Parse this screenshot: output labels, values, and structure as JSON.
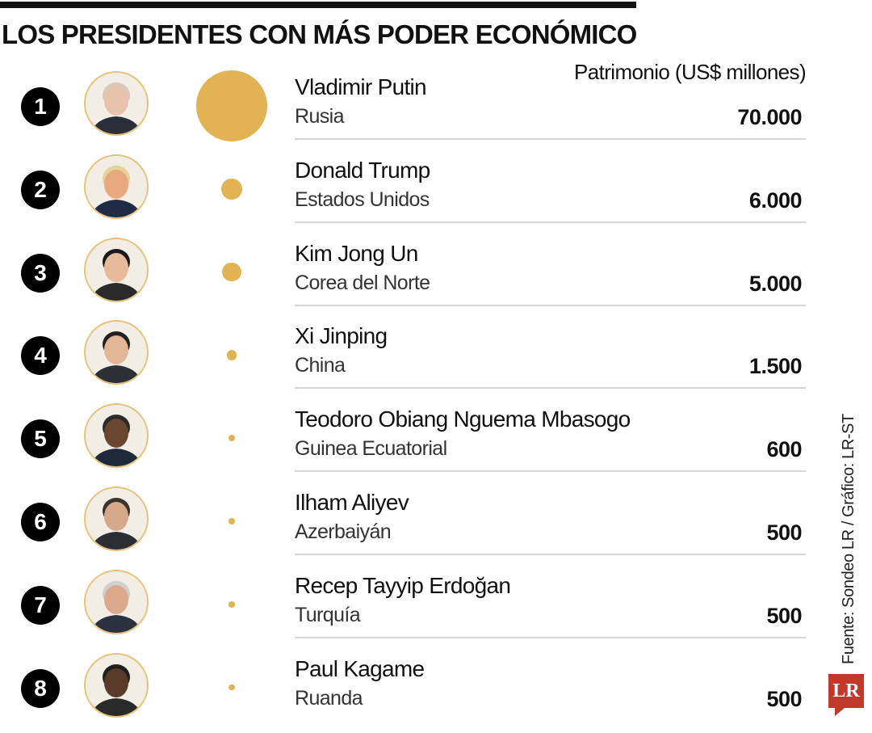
{
  "header": {
    "title": "LOS PRESIDENTES CON MÁS PODER ECONÓMICO",
    "column_label": "Patrimonio (US$ millones)"
  },
  "footer": {
    "source": "Fuente: Sondeo LR / Gráfico: LR-ST",
    "logo_text": "LR"
  },
  "colors": {
    "bubble": "#e2b354",
    "rank_badge": "#000000",
    "brand_red": "#c0392b"
  },
  "chart_data": {
    "type": "table",
    "title": "LOS PRESIDENTES CON MÁS PODER ECONÓMICO",
    "value_label": "Patrimonio (US$ millones)",
    "rows": [
      {
        "rank": "1",
        "name": "Vladimir Putin",
        "country": "Rusia",
        "value": 70000,
        "value_label": "70.000",
        "skin": "#e9c2ad",
        "hair": "#d9c9b8",
        "suit": "#2b2f3a"
      },
      {
        "rank": "2",
        "name": "Donald Trump",
        "country": "Estados Unidos",
        "value": 6000,
        "value_label": "6.000",
        "skin": "#e8a97e",
        "hair": "#e6d39a",
        "suit": "#1f2a44"
      },
      {
        "rank": "3",
        "name": "Kim Jong Un",
        "country": "Corea del Norte",
        "value": 5000,
        "value_label": "5.000",
        "skin": "#e6b99a",
        "hair": "#1a1a1a",
        "suit": "#2a2a2a"
      },
      {
        "rank": "4",
        "name": "Xi Jinping",
        "country": "China",
        "value": 1500,
        "value_label": "1.500",
        "skin": "#e2b797",
        "hair": "#222222",
        "suit": "#2c2f36"
      },
      {
        "rank": "5",
        "name": "Teodoro Obiang Nguema Mbasogo",
        "country": "Guinea Ecuatorial",
        "value": 600,
        "value_label": "600",
        "skin": "#6b4630",
        "hair": "#2a2a2a",
        "suit": "#1e2a3a"
      },
      {
        "rank": "6",
        "name": "Ilham Aliyev",
        "country": "Azerbaiyán",
        "value": 500,
        "value_label": "500",
        "skin": "#d7a98b",
        "hair": "#3a3330",
        "suit": "#2a2e35"
      },
      {
        "rank": "7",
        "name": "Recep Tayyip Erdoğan",
        "country": "Turquía",
        "value": 500,
        "value_label": "500",
        "skin": "#dca98d",
        "hair": "#cfcfcf",
        "suit": "#2c3140"
      },
      {
        "rank": "8",
        "name": "Paul Kagame",
        "country": "Ruanda",
        "value": 500,
        "value_label": "500",
        "skin": "#5a3a28",
        "hair": "#1f1f1f",
        "suit": "#2a2a2a"
      }
    ]
  }
}
